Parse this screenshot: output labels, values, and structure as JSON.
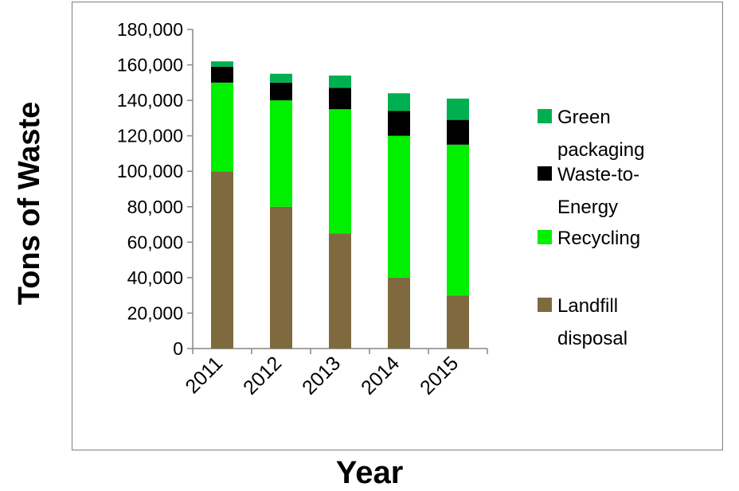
{
  "chart_data": {
    "type": "bar",
    "stacked": true,
    "title": "",
    "xlabel": "Year",
    "ylabel": "Tons of Waste",
    "categories": [
      "2011",
      "2012",
      "2013",
      "2014",
      "2015"
    ],
    "ylim": [
      0,
      180000
    ],
    "y_ticks": [
      "0",
      "20,000",
      "40,000",
      "60,000",
      "80,000",
      "100,000",
      "120,000",
      "140,000",
      "160,000",
      "180,000"
    ],
    "grid": false,
    "legend_position": "right",
    "series": [
      {
        "name": "Landfill disposal",
        "legend_lines": [
          "Landfill",
          "disposal"
        ],
        "color": "#7f6a3f",
        "values": [
          100000,
          80000,
          65000,
          40000,
          30000
        ]
      },
      {
        "name": "Recycling",
        "legend_lines": [
          "Recycling"
        ],
        "color": "#00f000",
        "values": [
          50000,
          60000,
          70000,
          80000,
          85000
        ]
      },
      {
        "name": "Waste-to-Energy",
        "legend_lines": [
          "Waste-to-",
          "Energy"
        ],
        "color": "#000000",
        "values": [
          9000,
          10000,
          12000,
          14000,
          14000
        ]
      },
      {
        "name": "Green packaging",
        "legend_lines": [
          "Green",
          "packaging"
        ],
        "color": "#00b050",
        "values": [
          3000,
          5000,
          7000,
          10000,
          12000
        ]
      }
    ]
  }
}
